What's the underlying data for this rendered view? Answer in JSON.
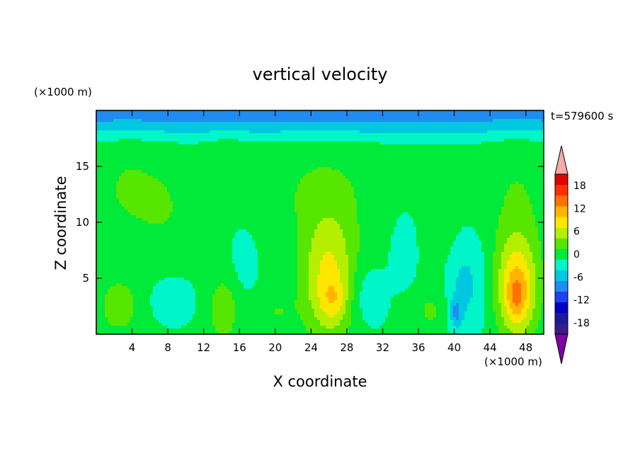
{
  "chart_data": {
    "type": "heatmap",
    "title": "vertical velocity",
    "xlabel": "X coordinate",
    "ylabel": "Z coordinate",
    "x_unit": "(×1000 m)",
    "y_unit": "(×1000 m)",
    "time_label": "t=579600 s",
    "xlim": [
      0,
      50
    ],
    "ylim": [
      0,
      20
    ],
    "x_ticks": [
      4,
      8,
      12,
      16,
      20,
      24,
      28,
      32,
      36,
      40,
      44,
      48
    ],
    "y_ticks": [
      5,
      10,
      15
    ],
    "colorbar": {
      "levels": [
        -21,
        -18,
        -15,
        -12,
        -9,
        -6,
        -3,
        0,
        3,
        6,
        9,
        12,
        15,
        18,
        21
      ],
      "tick_labels": [
        18,
        12,
        6,
        0,
        -6,
        -12,
        -18
      ],
      "colors": [
        "#3a1a8a",
        "#1a1a9a",
        "#0000c8",
        "#1f3ff0",
        "#1e8cf0",
        "#00c8e0",
        "#00f5c8",
        "#00ea3a",
        "#56e600",
        "#b6ee00",
        "#ffe600",
        "#ffb400",
        "#ff7000",
        "#ff3000",
        "#e00000"
      ],
      "under_color": "#8000a0",
      "over_color": "#f4aaaa",
      "background_color": "#00f08c"
    },
    "features": [
      {
        "kind": "updraft",
        "x": 3.5,
        "z": 13.0,
        "sx": 3.0,
        "sz": 3.5,
        "w": 2.8
      },
      {
        "kind": "updraft",
        "x": 2.5,
        "z": 2.5,
        "sx": 1.8,
        "sz": 2.0,
        "w": 4.0
      },
      {
        "kind": "updraft",
        "x": 8.0,
        "z": 11.0,
        "sx": 2.2,
        "sz": 3.0,
        "w": 2.0
      },
      {
        "kind": "updraft",
        "x": 14.5,
        "z": 15.5,
        "sx": 1.8,
        "sz": 1.8,
        "w": 2.2
      },
      {
        "kind": "updraft",
        "x": 14.2,
        "z": 2.2,
        "sx": 1.3,
        "sz": 2.2,
        "w": 4.5
      },
      {
        "kind": "updraft",
        "x": 25.0,
        "z": 13.0,
        "sx": 5.0,
        "sz": 3.2,
        "w": 2.6
      },
      {
        "kind": "updraft",
        "x": 26.0,
        "z": 5.0,
        "sx": 2.2,
        "sz": 4.0,
        "w": 9.5
      },
      {
        "kind": "updraft",
        "x": 26.5,
        "z": 3.0,
        "sx": 1.0,
        "sz": 1.3,
        "w": 4.0
      },
      {
        "kind": "updraft",
        "x": 36.0,
        "z": 15.0,
        "sx": 1.0,
        "sz": 1.0,
        "w": 2.0
      },
      {
        "kind": "updraft",
        "x": 38.5,
        "z": 9.0,
        "sx": 1.5,
        "sz": 4.0,
        "w": 2.2
      },
      {
        "kind": "updraft",
        "x": 47.0,
        "z": 12.0,
        "sx": 2.6,
        "sz": 5.0,
        "w": 2.6
      },
      {
        "kind": "updraft",
        "x": 47.0,
        "z": 4.0,
        "sx": 1.6,
        "sz": 3.2,
        "w": 12.0
      },
      {
        "kind": "updraft",
        "x": 47.0,
        "z": 3.3,
        "sx": 0.7,
        "sz": 1.3,
        "w": 4.0
      },
      {
        "kind": "updraft",
        "x": 37.5,
        "z": 2.0,
        "sx": 1.6,
        "sz": 1.6,
        "w": 3.0
      },
      {
        "kind": "updraft",
        "x": 20.0,
        "z": 2.0,
        "sx": 1.5,
        "sz": 1.2,
        "w": 2.5
      },
      {
        "kind": "downdraft",
        "x": 8.5,
        "z": 3.0,
        "sx": 1.5,
        "sz": 1.2,
        "w": -3.5
      },
      {
        "kind": "downdraft",
        "x": 16.5,
        "z": 6.5,
        "sx": 1.0,
        "sz": 2.0,
        "w": -2.0
      },
      {
        "kind": "downdraft",
        "x": 30.0,
        "z": 3.5,
        "sx": 1.5,
        "sz": 2.0,
        "w": -3.0
      },
      {
        "kind": "downdraft",
        "x": 34.5,
        "z": 7.5,
        "sx": 1.0,
        "sz": 2.2,
        "w": -2.5
      },
      {
        "kind": "downdraft",
        "x": 41.0,
        "z": 4.5,
        "sx": 1.8,
        "sz": 3.0,
        "w": -4.5
      },
      {
        "kind": "downdraft",
        "x": 40.2,
        "z": 1.9,
        "sx": 0.5,
        "sz": 0.9,
        "w": -6.0
      }
    ]
  }
}
